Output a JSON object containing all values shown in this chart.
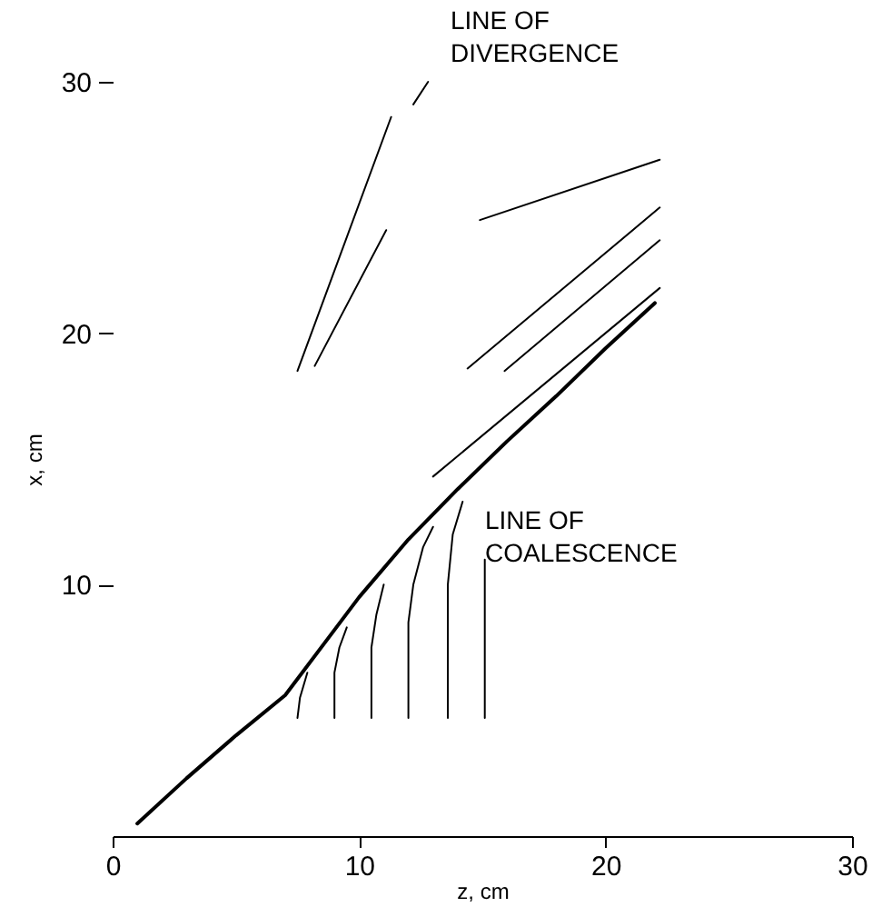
{
  "chart_data": {
    "type": "line",
    "xlabel": "z, cm",
    "ylabel": "x, cm",
    "xlim": [
      0,
      30
    ],
    "ylim": [
      0,
      30
    ],
    "xticks": [
      0,
      10,
      20,
      30
    ],
    "yticks": [
      10,
      20,
      30
    ],
    "grid": false,
    "marker": "none",
    "line_style": "solid",
    "series": [
      {
        "color": "#000000",
        "x": [
          1,
          3,
          5,
          7,
          9,
          10,
          12,
          14,
          16,
          18,
          20,
          22
        ],
        "values": [
          0.5,
          2.3,
          4,
          5.6,
          8.2,
          9.5,
          11.8,
          13.8,
          15.7,
          17.5,
          19.4,
          21.2
        ]
      },
      {
        "color": "#000000",
        "x": [
          7.5,
          7.6,
          7.9
        ],
        "values": [
          4.7,
          5.5,
          6.5
        ]
      },
      {
        "color": "#000000",
        "x": [
          9,
          9,
          9.2,
          9.5
        ],
        "values": [
          4.7,
          6.5,
          7.5,
          8.3
        ]
      },
      {
        "color": "#000000",
        "x": [
          10.5,
          10.5,
          10.7,
          11
        ],
        "values": [
          4.7,
          7.5,
          8.8,
          10
        ]
      },
      {
        "color": "#000000",
        "x": [
          12,
          12,
          12.2,
          12.6,
          13
        ],
        "values": [
          4.7,
          8.5,
          10,
          11.5,
          12.3
        ]
      },
      {
        "color": "#000000",
        "x": [
          13.6,
          13.6,
          13.8,
          14.2
        ],
        "values": [
          4.7,
          10,
          12,
          13.3
        ]
      },
      {
        "color": "#000000",
        "x": [
          15.1,
          15.1
        ],
        "values": [
          4.7,
          11
        ]
      },
      {
        "color": "#000000",
        "x": [
          13,
          22.2
        ],
        "values": [
          14.3,
          21.8
        ]
      },
      {
        "color": "#000000",
        "x": [
          15.9,
          22.2
        ],
        "values": [
          18.5,
          23.7
        ]
      },
      {
        "color": "#000000",
        "x": [
          14.4,
          22.2
        ],
        "values": [
          18.6,
          25
        ]
      },
      {
        "color": "#000000",
        "x": [
          14.9,
          22.2
        ],
        "values": [
          24.5,
          26.9
        ]
      },
      {
        "color": "#000000",
        "x": [
          7.5,
          11.3
        ],
        "values": [
          18.5,
          28.6
        ]
      },
      {
        "color": "#000000",
        "x": [
          8.2,
          11.1
        ],
        "values": [
          18.7,
          24.1
        ]
      },
      {
        "color": "#000000",
        "x": [
          12.2,
          12.8
        ],
        "values": [
          29.1,
          30
        ]
      }
    ],
    "annotations": [
      "LINE OF\nDIVERGENCE",
      "LINE OF\nCOALESCENCE"
    ]
  }
}
